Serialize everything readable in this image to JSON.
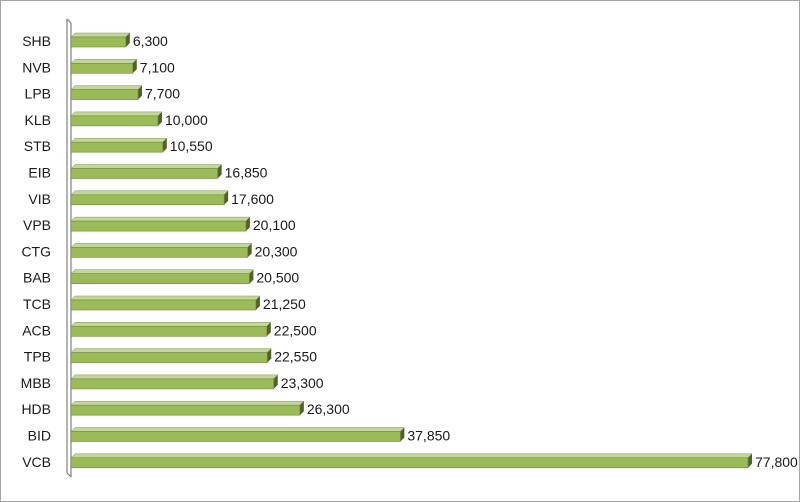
{
  "chart_data": {
    "type": "bar",
    "orientation": "horizontal",
    "title": "",
    "xlabel": "",
    "ylabel": "",
    "xlim": [
      0,
      80000
    ],
    "grid": false,
    "legend": "none",
    "categories": [
      "SHB",
      "NVB",
      "LPB",
      "KLB",
      "STB",
      "EIB",
      "VIB",
      "VPB",
      "CTG",
      "BAB",
      "TCB",
      "ACB",
      "TPB",
      "MBB",
      "HDB",
      "BID",
      "VCB"
    ],
    "values": [
      6300,
      7100,
      7700,
      10000,
      10550,
      16850,
      17600,
      20100,
      20300,
      20500,
      21250,
      22500,
      22550,
      23300,
      26300,
      37850,
      77800
    ],
    "value_labels": [
      "6,300",
      "7,100",
      "7,700",
      "10,000",
      "10,550",
      "16,850",
      "17,600",
      "20,100",
      "20,300",
      "20,500",
      "21,250",
      "22,500",
      "22,550",
      "23,300",
      "26,300",
      "37,850",
      "77,800"
    ]
  },
  "colors": {
    "bar_front": "#9bbb59",
    "bar_top": "#c3d69b",
    "bar_side": "#4f6228",
    "axis": "#808080",
    "text": "#1a1a1a"
  }
}
